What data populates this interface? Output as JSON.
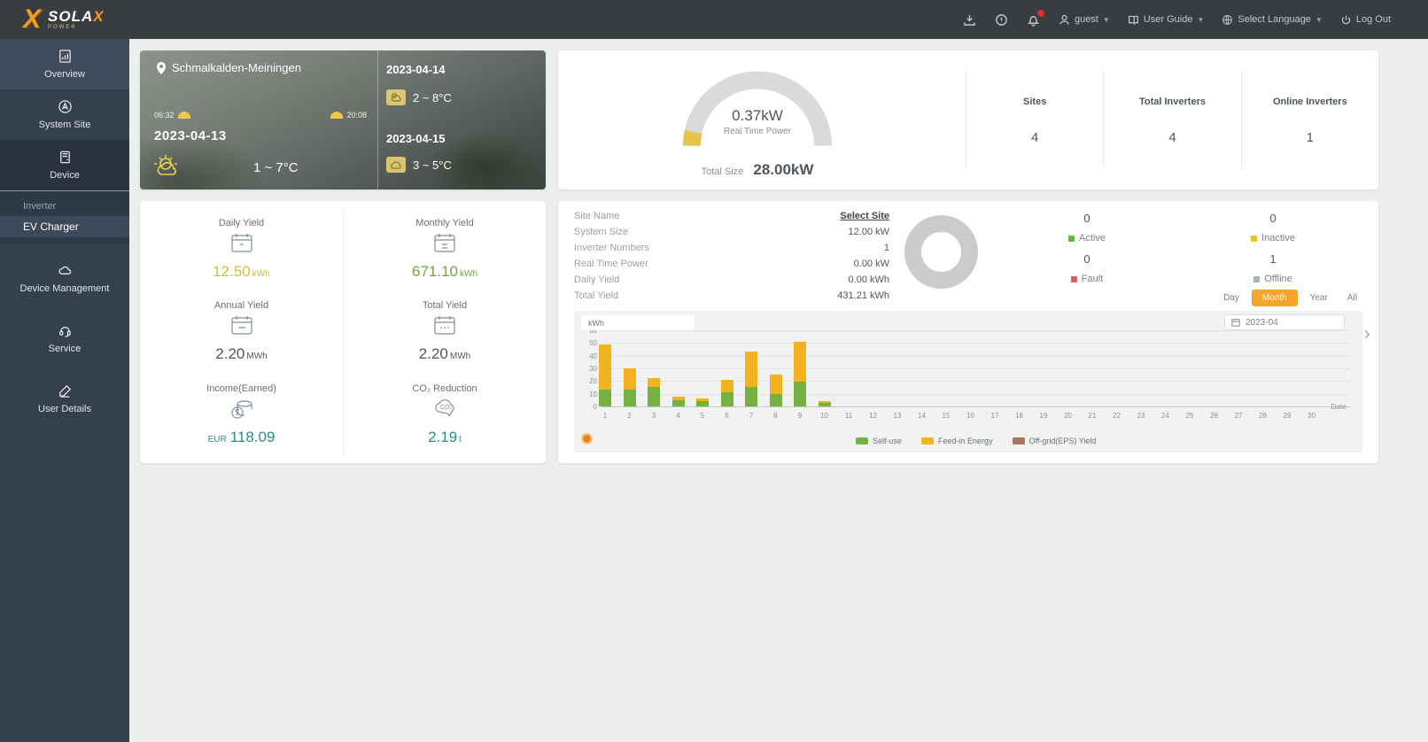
{
  "navbar": {
    "brand": {
      "name": "SOLA",
      "accent": "X",
      "sub": "POWER"
    },
    "user_label": "guest",
    "user_guide_label": "User Guide",
    "language_label": "Select Language",
    "logout_label": "Log Out"
  },
  "sidebar": {
    "items": [
      {
        "label": "Overview"
      },
      {
        "label": "System Site"
      },
      {
        "label": "Device"
      },
      {
        "label": "Device Management"
      },
      {
        "label": "Service"
      },
      {
        "label": "User Details"
      }
    ],
    "device_submenu": [
      {
        "label": "Inverter"
      },
      {
        "label": "EV Charger"
      }
    ]
  },
  "weather": {
    "location": "Schmalkalden-Meiningen",
    "sunrise": "06:32",
    "sunset": "20:08",
    "today_date": "2023-04-13",
    "today_range": "1 ~ 7°C",
    "forecast": [
      {
        "date": "2023-04-14",
        "range": "2 ~ 8°C"
      },
      {
        "date": "2023-04-15",
        "range": "3 ~ 5°C"
      }
    ]
  },
  "overview_card": {
    "power_value": "0.37kW",
    "power_label": "Real Time Power",
    "total_size_label": "Total Size",
    "total_size_value": "28.00kW",
    "stats": [
      {
        "label": "Sites",
        "value": "4"
      },
      {
        "label": "Total Inverters",
        "value": "4"
      },
      {
        "label": "Online Inverters",
        "value": "1"
      }
    ]
  },
  "yield_card": {
    "items": [
      {
        "label": "Daily Yield",
        "value": "12.50",
        "unit": "kWh",
        "color": "#cfc02f"
      },
      {
        "label": "Monthly Yield",
        "value": "671.10",
        "unit": "kWh",
        "color": "#6fa83c"
      },
      {
        "label": "Annual Yield",
        "value": "2.20",
        "unit": "MWh",
        "color": "#4e565c"
      },
      {
        "label": "Total Yield",
        "value": "2.20",
        "unit": "MWh",
        "color": "#4e565c"
      },
      {
        "label": "Income(Earned)",
        "value": "118.09",
        "unit": "",
        "prefix": "EUR",
        "color": "#2e8b8b"
      },
      {
        "label": "CO₂ Reduction",
        "value": "2.19",
        "unit": "t",
        "color": "#2e8b8b"
      }
    ]
  },
  "site_panel": {
    "rows": [
      {
        "label": "Site Name",
        "value": "Select Site"
      },
      {
        "label": "System Size",
        "value": "12.00 kW"
      },
      {
        "label": "Inverter Numbers",
        "value": "1"
      },
      {
        "label": "Real Time Power",
        "value": "0.00 kW"
      },
      {
        "label": "Daily Yield",
        "value": "0.00 kWh"
      },
      {
        "label": "Total Yield",
        "value": "431.21 kWh"
      }
    ],
    "statuses": [
      {
        "value": "0",
        "label": "Active",
        "color": "#67b347"
      },
      {
        "value": "0",
        "label": "Inactive",
        "color": "#e3c62f"
      },
      {
        "value": "0",
        "label": "Fault",
        "color": "#e05c5c"
      },
      {
        "value": "1",
        "label": "Offline",
        "color": "#aab1b5"
      }
    ],
    "period_buttons": [
      "Day",
      "Month",
      "Year",
      "All"
    ],
    "selected_period": "Month",
    "date_value": "2023-04"
  },
  "chart_data": {
    "type": "bar",
    "unit": "kWh",
    "xlabel": "Date",
    "x": [
      1,
      2,
      3,
      4,
      5,
      6,
      7,
      8,
      9,
      10,
      11,
      12,
      13,
      14,
      15,
      16,
      17,
      18,
      19,
      20,
      21,
      22,
      23,
      24,
      25,
      26,
      27,
      28,
      29,
      30
    ],
    "ylim": [
      0,
      60
    ],
    "yticks": [
      0,
      10,
      20,
      30,
      40,
      50,
      60
    ],
    "grid": true,
    "legend_position": "bottom",
    "series": [
      {
        "name": "Self-use",
        "color": "#76b043",
        "values": [
          13.5,
          13,
          15,
          5,
          4.5,
          11,
          15,
          9.5,
          19.5,
          3,
          0,
          0,
          0,
          0,
          0,
          0,
          0,
          0,
          0,
          0,
          0,
          0,
          0,
          0,
          0,
          0,
          0,
          0,
          0,
          0
        ]
      },
      {
        "name": "Feed-in Energy",
        "color": "#f2b31e",
        "values": [
          35,
          17,
          7,
          2.5,
          2,
          10,
          28,
          15.5,
          31.5,
          1,
          0,
          0,
          0,
          0,
          0,
          0,
          0,
          0,
          0,
          0,
          0,
          0,
          0,
          0,
          0,
          0,
          0,
          0,
          0,
          0
        ]
      },
      {
        "name": "Off-grid(EPS) Yield",
        "color": "#a97563",
        "values": [
          0,
          0,
          0,
          0,
          0,
          0,
          0,
          0,
          0,
          0,
          0,
          0,
          0,
          0,
          0,
          0,
          0,
          0,
          0,
          0,
          0,
          0,
          0,
          0,
          0,
          0,
          0,
          0,
          0,
          0
        ]
      }
    ]
  }
}
